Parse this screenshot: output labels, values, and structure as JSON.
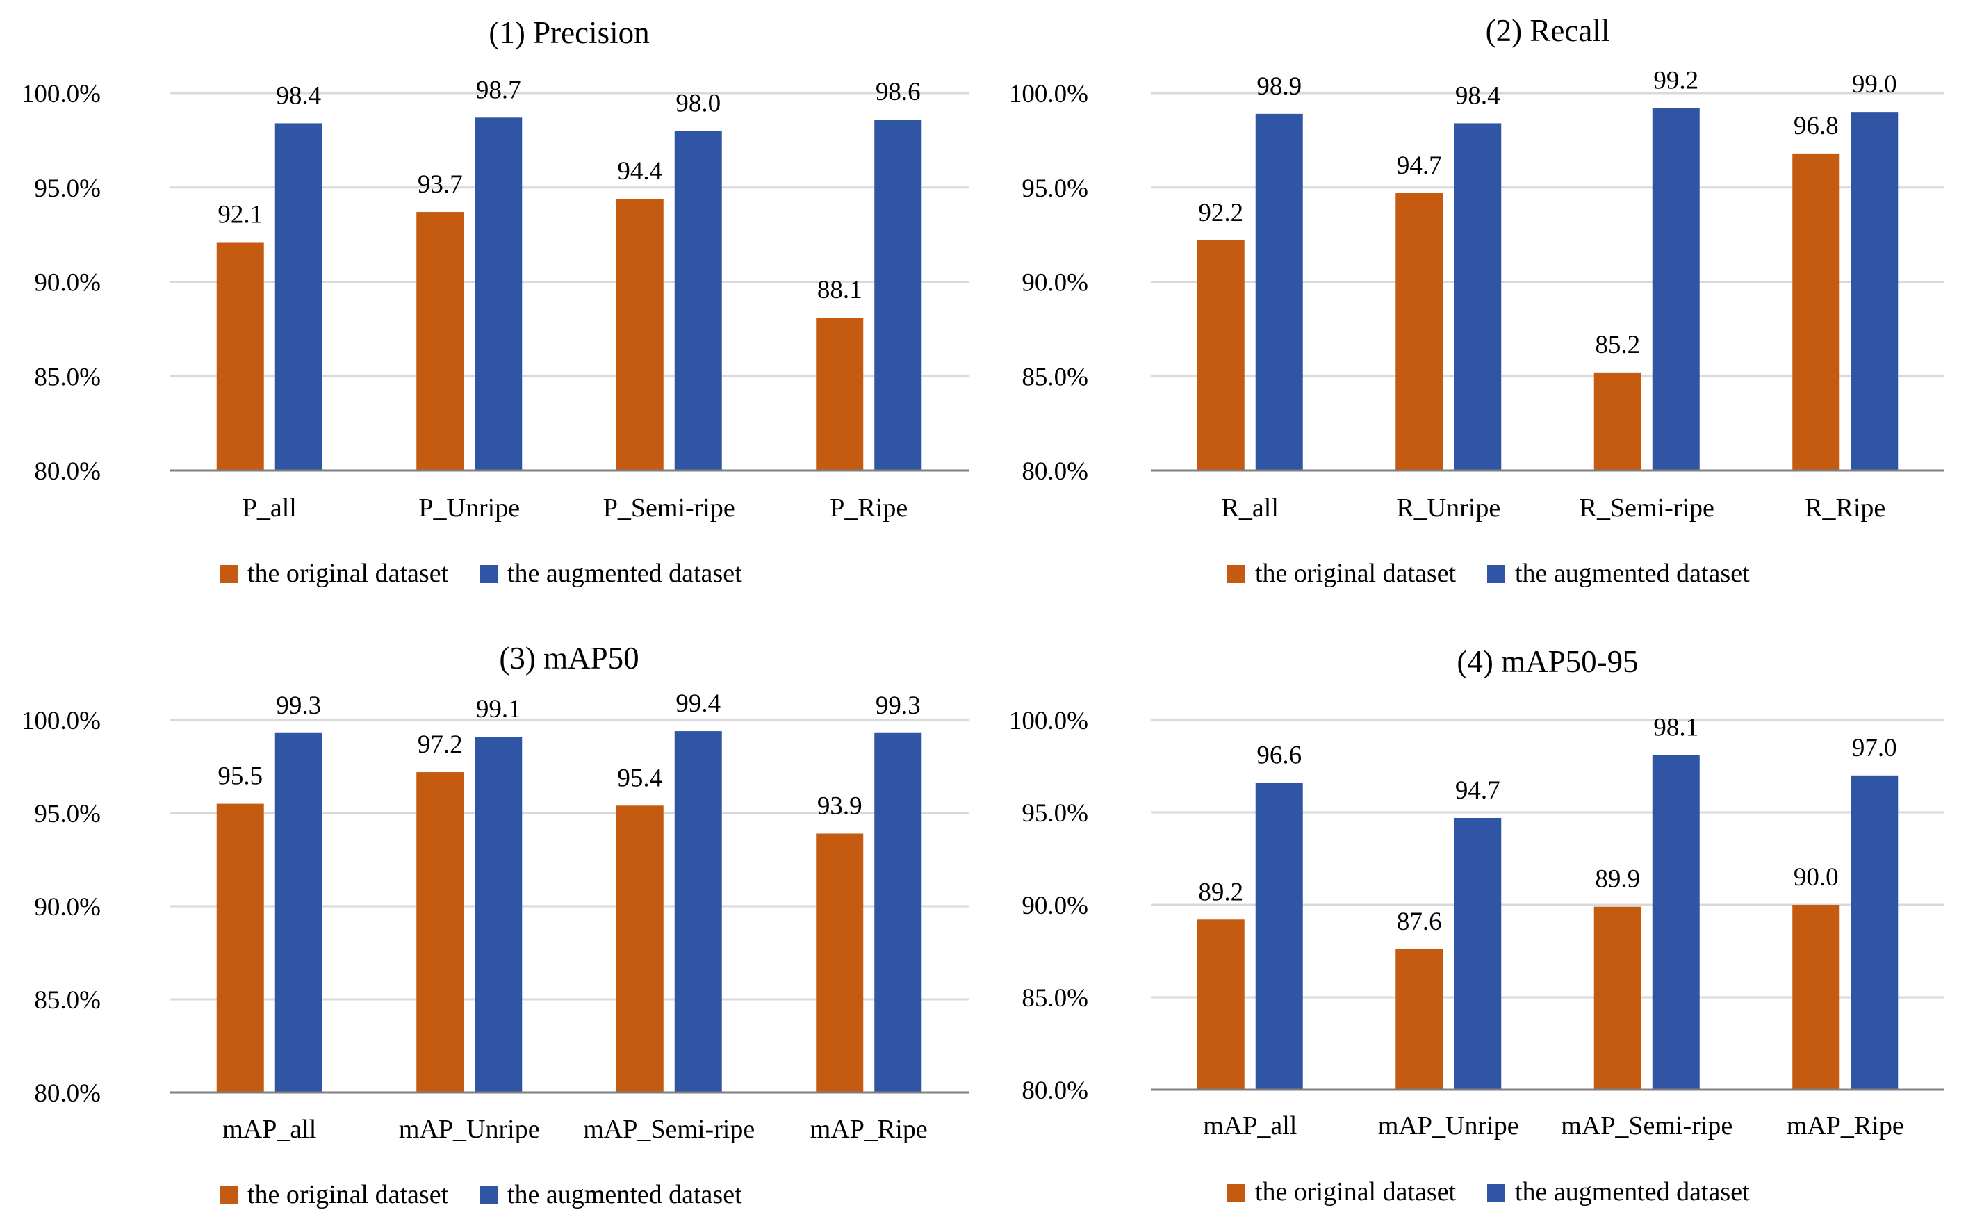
{
  "colors": {
    "original": "#C55A11",
    "augmented": "#2F55A4",
    "grid": "#D9D9D9",
    "axis": "#7F7F7F",
    "text": "#000000"
  },
  "chart_data": [
    {
      "type": "bar",
      "title": "(1) Precision",
      "categories": [
        "P_all",
        "P_Unripe",
        "P_Semi-ripe",
        "P_Ripe"
      ],
      "series": [
        {
          "name": "the original dataset",
          "values": [
            92.1,
            93.7,
            94.4,
            88.1
          ],
          "labels": [
            "92.1",
            "93.7",
            "94.4",
            "88.1"
          ]
        },
        {
          "name": "the augmented dataset",
          "values": [
            98.4,
            98.7,
            98.0,
            98.6
          ],
          "labels": [
            "98.4",
            "98.7",
            "98.0",
            "98.6"
          ]
        }
      ],
      "ylim": [
        80,
        100
      ],
      "yticks": [
        "80.0%",
        "85.0%",
        "90.0%",
        "95.0%",
        "100.0%"
      ],
      "grid": true,
      "legend": "bottom"
    },
    {
      "type": "bar",
      "title": "(2) Recall",
      "categories": [
        "R_all",
        "R_Unripe",
        "R_Semi-ripe",
        "R_Ripe"
      ],
      "series": [
        {
          "name": "the original dataset",
          "values": [
            92.2,
            94.7,
            85.2,
            96.8
          ],
          "labels": [
            "92.2",
            "94.7",
            "85.2",
            "96.8"
          ]
        },
        {
          "name": "the augmented dataset",
          "values": [
            98.9,
            98.4,
            99.2,
            99.0
          ],
          "labels": [
            "98.9",
            "98.4",
            "99.2",
            "99.0"
          ]
        }
      ],
      "ylim": [
        80,
        100
      ],
      "yticks": [
        "80.0%",
        "85.0%",
        "90.0%",
        "95.0%",
        "100.0%"
      ],
      "grid": true,
      "legend": "bottom"
    },
    {
      "type": "bar",
      "title": "(3) mAP50",
      "categories": [
        "mAP_all",
        "mAP_Unripe",
        "mAP_Semi-ripe",
        "mAP_Ripe"
      ],
      "series": [
        {
          "name": "the original dataset",
          "values": [
            95.5,
            97.2,
            95.4,
            93.9
          ],
          "labels": [
            "95.5",
            "97.2",
            "95.4",
            "93.9"
          ]
        },
        {
          "name": "the augmented dataset",
          "values": [
            99.3,
            99.1,
            99.4,
            99.3
          ],
          "labels": [
            "99.3",
            "99.1",
            "99.4",
            "99.3"
          ]
        }
      ],
      "ylim": [
        80,
        100
      ],
      "yticks": [
        "80.0%",
        "85.0%",
        "90.0%",
        "95.0%",
        "100.0%"
      ],
      "grid": true,
      "legend": "bottom"
    },
    {
      "type": "bar",
      "title": "(4) mAP50-95",
      "categories": [
        "mAP_all",
        "mAP_Unripe",
        "mAP_Semi-ripe",
        "mAP_Ripe"
      ],
      "series": [
        {
          "name": "the original dataset",
          "values": [
            89.2,
            87.6,
            89.9,
            90.0
          ],
          "labels": [
            "89.2",
            "87.6",
            "89.9",
            "90.0"
          ]
        },
        {
          "name": "the augmented dataset",
          "values": [
            96.6,
            94.7,
            98.1,
            97.0
          ],
          "labels": [
            "96.6",
            "94.7",
            "98.1",
            "97.0"
          ]
        }
      ],
      "ylim": [
        80,
        100
      ],
      "yticks": [
        "80.0%",
        "85.0%",
        "90.0%",
        "95.0%",
        "100.0%"
      ],
      "grid": true,
      "legend": "bottom"
    }
  ]
}
